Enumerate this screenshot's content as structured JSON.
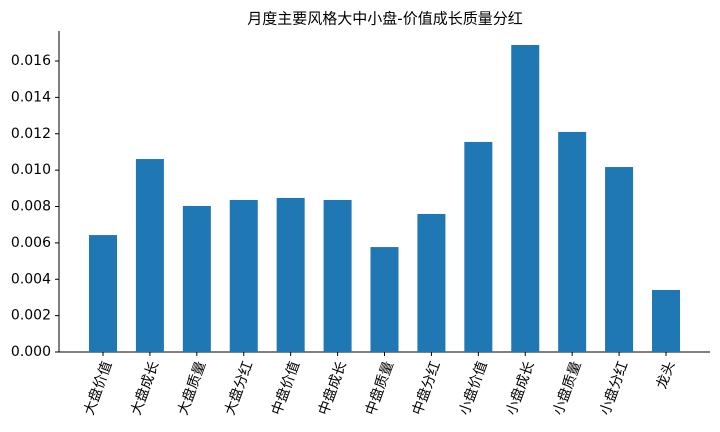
{
  "chart_data": {
    "type": "bar",
    "title": "月度主要风格大中小盘-价值成长质量分红",
    "categories": [
      "大盘价值",
      "大盘成长",
      "大盘质量",
      "大盘分红",
      "中盘价值",
      "中盘成长",
      "中盘质量",
      "中盘分红",
      "小盘价值",
      "小盘成长",
      "小盘质量",
      "小盘分红",
      "龙头"
    ],
    "values": [
      0.00643,
      0.01061,
      0.00803,
      0.00836,
      0.00847,
      0.00836,
      0.00577,
      0.00759,
      0.01155,
      0.01688,
      0.0121,
      0.01017,
      0.00341
    ],
    "color": "#1f77b4",
    "ylim": [
      0,
      0.01765
    ],
    "yticks": [
      {
        "value": 0,
        "label": "0.000"
      },
      {
        "value": 0.002,
        "label": "0.002"
      },
      {
        "value": 0.004,
        "label": "0.004"
      },
      {
        "value": 0.006,
        "label": "0.006"
      },
      {
        "value": 0.008,
        "label": "0.008"
      },
      {
        "value": 0.01,
        "label": "0.010"
      },
      {
        "value": 0.012,
        "label": "0.012"
      },
      {
        "value": 0.014,
        "label": "0.014"
      },
      {
        "value": 0.016,
        "label": "0.016"
      }
    ],
    "grid": false
  }
}
